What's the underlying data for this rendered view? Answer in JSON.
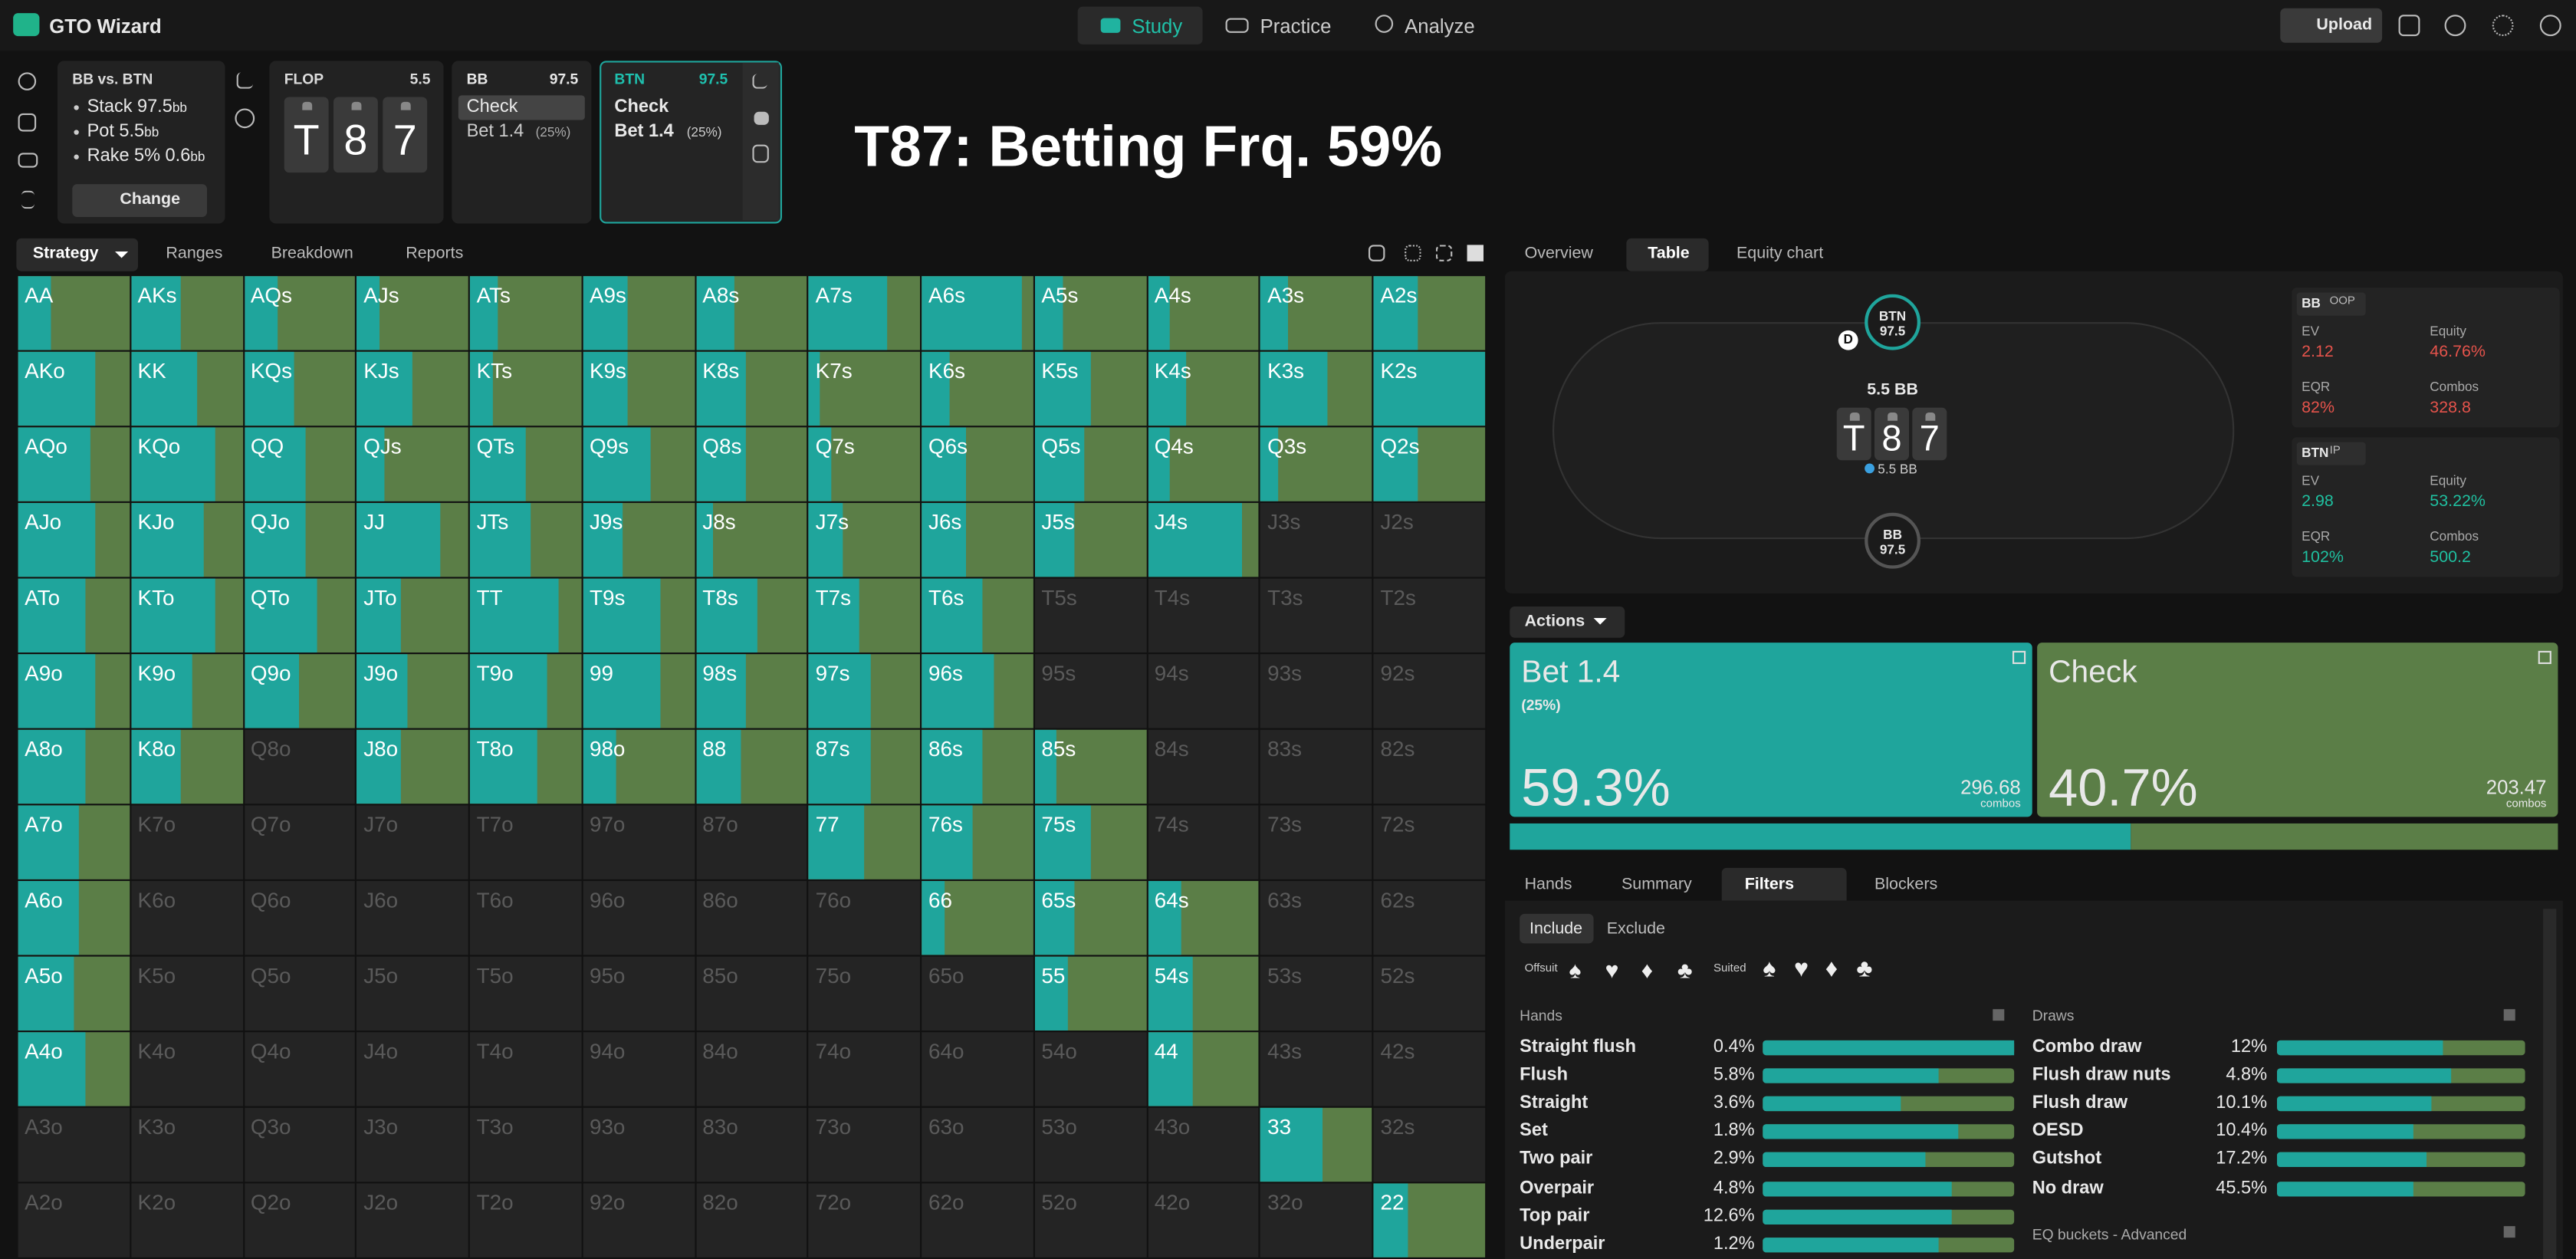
{
  "nav": {
    "brand": "GTO Wizard",
    "tabs": [
      "Study",
      "Practice",
      "Analyze"
    ],
    "upload": "Upload"
  },
  "spot": {
    "title": "BB vs. BTN",
    "items": [
      {
        "label": "Stack",
        "value": "97.5",
        "unit": "bb"
      },
      {
        "label": "Pot",
        "value": "5.5",
        "unit": "bb"
      },
      {
        "label": "Rake",
        "value": "5%",
        "extra": "0.6",
        "unit": "bb"
      }
    ],
    "change": "Change"
  },
  "flop": {
    "label": "FLOP",
    "pot": "5.5",
    "cards": [
      "T",
      "8",
      "7"
    ]
  },
  "players": [
    {
      "name": "BB",
      "stack": "97.5",
      "actions": [
        "Check",
        "Bet 1.4"
      ],
      "sub": "(25%)"
    },
    {
      "name": "BTN",
      "stack": "97.5",
      "actions": [
        "Check",
        "Bet 1.4"
      ],
      "sub": "(25%)"
    }
  ],
  "headline": "T87: Betting Frq. 59%",
  "strategy_tabs": [
    "Strategy",
    "Ranges",
    "Breakdown",
    "Reports"
  ],
  "grid": {
    "labels": [
      [
        "AA",
        "AKs",
        "AQs",
        "AJs",
        "ATs",
        "A9s",
        "A8s",
        "A7s",
        "A6s",
        "A5s",
        "A4s",
        "A3s",
        "A2s"
      ],
      [
        "AKo",
        "KK",
        "KQs",
        "KJs",
        "KTs",
        "K9s",
        "K8s",
        "K7s",
        "K6s",
        "K5s",
        "K4s",
        "K3s",
        "K2s"
      ],
      [
        "AQo",
        "KQo",
        "QQ",
        "QJs",
        "QTs",
        "Q9s",
        "Q8s",
        "Q7s",
        "Q6s",
        "Q5s",
        "Q4s",
        "Q3s",
        "Q2s"
      ],
      [
        "AJo",
        "KJo",
        "QJo",
        "JJ",
        "JTs",
        "J9s",
        "J8s",
        "J7s",
        "J6s",
        "J5s",
        "J4s",
        "J3s",
        "J2s"
      ],
      [
        "ATo",
        "KTo",
        "QTo",
        "JTo",
        "TT",
        "T9s",
        "T8s",
        "T7s",
        "T6s",
        "T5s",
        "T4s",
        "T3s",
        "T2s"
      ],
      [
        "A9o",
        "K9o",
        "Q9o",
        "J9o",
        "T9o",
        "99",
        "98s",
        "97s",
        "96s",
        "95s",
        "94s",
        "93s",
        "92s"
      ],
      [
        "A8o",
        "K8o",
        "Q8o",
        "J8o",
        "T8o",
        "98o",
        "88",
        "87s",
        "86s",
        "85s",
        "84s",
        "83s",
        "82s"
      ],
      [
        "A7o",
        "K7o",
        "Q7o",
        "J7o",
        "T7o",
        "97o",
        "87o",
        "77",
        "76s",
        "75s",
        "74s",
        "73s",
        "72s"
      ],
      [
        "A6o",
        "K6o",
        "Q6o",
        "J6o",
        "T6o",
        "96o",
        "86o",
        "76o",
        "66",
        "65s",
        "64s",
        "63s",
        "62s"
      ],
      [
        "A5o",
        "K5o",
        "Q5o",
        "J5o",
        "T5o",
        "95o",
        "85o",
        "75o",
        "65o",
        "55",
        "54s",
        "53s",
        "52s"
      ],
      [
        "A4o",
        "K4o",
        "Q4o",
        "J4o",
        "T4o",
        "94o",
        "84o",
        "74o",
        "64o",
        "54o",
        "44",
        "43s",
        "42s"
      ],
      [
        "A3o",
        "K3o",
        "Q3o",
        "J3o",
        "T3o",
        "93o",
        "83o",
        "73o",
        "63o",
        "53o",
        "43o",
        "33",
        "32s"
      ],
      [
        "A2o",
        "K2o",
        "Q2o",
        "J2o",
        "T2o",
        "92o",
        "82o",
        "72o",
        "62o",
        "52o",
        "42o",
        "32o",
        "22"
      ]
    ],
    "bet": [
      [
        30,
        45,
        30,
        20,
        25,
        40,
        35,
        70,
        90,
        25,
        20,
        25,
        40
      ],
      [
        70,
        60,
        45,
        50,
        20,
        40,
        45,
        10,
        25,
        50,
        35,
        60,
        100
      ],
      [
        65,
        75,
        55,
        25,
        50,
        60,
        45,
        20,
        40,
        45,
        20,
        15,
        40
      ],
      [
        70,
        65,
        55,
        75,
        55,
        35,
        15,
        30,
        40,
        35,
        85,
        null,
        null
      ],
      [
        60,
        75,
        65,
        40,
        80,
        70,
        55,
        45,
        55,
        null,
        null,
        null,
        null
      ],
      [
        70,
        55,
        50,
        45,
        70,
        70,
        45,
        55,
        65,
        null,
        null,
        null,
        null
      ],
      [
        60,
        45,
        null,
        40,
        60,
        30,
        40,
        55,
        55,
        20,
        null,
        null,
        null
      ],
      [
        55,
        null,
        null,
        null,
        null,
        null,
        null,
        50,
        45,
        50,
        null,
        null,
        null
      ],
      [
        55,
        null,
        null,
        null,
        null,
        null,
        null,
        null,
        20,
        35,
        30,
        null,
        null
      ],
      [
        50,
        null,
        null,
        null,
        null,
        null,
        null,
        null,
        null,
        30,
        40,
        null,
        null
      ],
      [
        60,
        null,
        null,
        null,
        null,
        null,
        null,
        null,
        null,
        null,
        40,
        null,
        null
      ],
      [
        null,
        null,
        null,
        null,
        null,
        null,
        null,
        null,
        null,
        null,
        null,
        55,
        null
      ],
      [
        null,
        null,
        null,
        null,
        null,
        null,
        null,
        null,
        null,
        null,
        null,
        null,
        30
      ]
    ]
  },
  "right_tabs": [
    "Overview",
    "Table",
    "Equity chart"
  ],
  "table": {
    "btn": {
      "name": "BTN",
      "stack": "97.5"
    },
    "bb": {
      "name": "BB",
      "stack": "97.5"
    },
    "dealer": "D",
    "pot": "5.5 BB",
    "cards": [
      "T",
      "8",
      "7"
    ],
    "bet": "5.5 BB"
  },
  "stats": [
    {
      "player": "BB",
      "pos": "OOP",
      "cells": [
        [
          "EV",
          "2.12"
        ],
        [
          "Equity",
          "46.76%"
        ],
        [
          "EQR",
          "82%"
        ],
        [
          "Combos",
          "328.8"
        ]
      ]
    },
    {
      "player": "BTN",
      "pos": "IP",
      "cells": [
        [
          "EV",
          "2.98"
        ],
        [
          "Equity",
          "53.22%"
        ],
        [
          "EQR",
          "102%"
        ],
        [
          "Combos",
          "500.2"
        ]
      ]
    }
  ],
  "actions": {
    "title": "Actions",
    "items": [
      {
        "name": "Bet 1.4",
        "sub": "(25%)",
        "freq": {
          "value": 59.3,
          "label": "59.3%"
        },
        "combos": "296.68",
        "combos_label": "combos",
        "color": "#1fa59c"
      },
      {
        "name": "Check",
        "freq": {
          "value": 40.7,
          "label": "40.7%"
        },
        "combos": "203.47",
        "combos_label": "combos",
        "color": "#5b7e47"
      }
    ]
  },
  "bottom_tabs": [
    "Hands",
    "Summary",
    "Filters",
    "Blockers"
  ],
  "filters": {
    "modes": [
      "Include",
      "Exclude"
    ],
    "offsuit": "Offsuit",
    "suited": "Suited",
    "suits": [
      "♠",
      "♥",
      "♦",
      "♣"
    ],
    "hands_title": "Hands",
    "hands": [
      {
        "name": "Straight flush",
        "pct": "0.4%",
        "bet": 100
      },
      {
        "name": "Flush",
        "pct": "5.8%",
        "bet": 70
      },
      {
        "name": "Straight",
        "pct": "3.6%",
        "bet": 55
      },
      {
        "name": "Set",
        "pct": "1.8%",
        "bet": 78
      },
      {
        "name": "Two pair",
        "pct": "2.9%",
        "bet": 65
      },
      {
        "name": "Overpair",
        "pct": "4.8%",
        "bet": 75
      },
      {
        "name": "Top pair",
        "pct": "12.6%",
        "bet": 75
      },
      {
        "name": "Underpair",
        "pct": "1.2%",
        "bet": 70
      }
    ],
    "draws_title": "Draws",
    "draws": [
      {
        "name": "Combo draw",
        "pct": "12%",
        "bet": 67
      },
      {
        "name": "Flush draw nuts",
        "pct": "4.8%",
        "bet": 70
      },
      {
        "name": "Flush draw",
        "pct": "10.1%",
        "bet": 62
      },
      {
        "name": "OESD",
        "pct": "10.4%",
        "bet": 55
      },
      {
        "name": "Gutshot",
        "pct": "17.2%",
        "bet": 60
      },
      {
        "name": "No draw",
        "pct": "45.5%",
        "bet": 55
      }
    ],
    "eq_title": "EQ buckets - Advanced"
  }
}
